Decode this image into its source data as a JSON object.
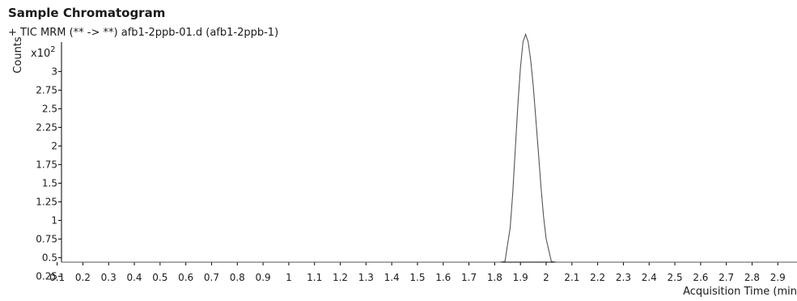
{
  "page": {
    "title": "Sample Chromatogram",
    "trace_label": "+ TIC MRM (** -> **) afb1-2ppb-01.d (afb1-2ppb-1)"
  },
  "chart_data": {
    "type": "line",
    "title": "Sample Chromatogram",
    "xlabel": "Acquisition Time (min",
    "ylabel": "Counts",
    "y_multiplier_label": "x10",
    "y_multiplier_exponent": "2",
    "xlim": [
      0,
      3.0
    ],
    "ylim": [
      0.125,
      3.5
    ],
    "x_ticks": [
      "0.1",
      "0.2",
      "0.3",
      "0.4",
      "0.5",
      "0.6",
      "0.7",
      "0.8",
      "0.9",
      "1",
      "1.1",
      "1.2",
      "1.3",
      "1.4",
      "1.5",
      "1.6",
      "1.7",
      "1.8",
      "1.9",
      "2",
      "2.1",
      "2.2",
      "2.3",
      "2.4",
      "2.5",
      "2.6",
      "2.7",
      "2.8",
      "2.9"
    ],
    "y_ticks": [
      "0.25",
      "0.5",
      "0.75",
      "1",
      "1.25",
      "1.5",
      "1.75",
      "2",
      "2.25",
      "2.5",
      "2.75",
      "3"
    ],
    "line_color": "#555555",
    "grid": false,
    "series": [
      {
        "x": [
          0.0,
          0.1,
          0.3,
          0.5,
          0.7,
          0.9,
          1.1,
          1.3,
          1.45,
          1.5,
          1.55,
          1.6,
          1.7,
          1.76,
          1.8,
          1.82,
          1.84,
          1.86,
          1.87,
          1.88,
          1.89,
          1.9,
          1.91,
          1.92,
          1.93,
          1.94,
          1.95,
          1.96,
          1.97,
          1.98,
          1.99,
          2.0,
          2.02,
          2.04,
          2.06,
          2.08,
          2.1,
          2.15,
          2.2,
          2.3,
          2.4,
          2.5,
          2.6,
          2.7,
          2.8,
          2.9,
          2.95,
          2.97,
          3.0
        ],
        "y": [
          0.13,
          0.135,
          0.135,
          0.14,
          0.135,
          0.14,
          0.14,
          0.14,
          0.14,
          0.16,
          0.15,
          0.145,
          0.15,
          0.17,
          0.19,
          0.25,
          0.45,
          0.9,
          1.35,
          1.95,
          2.55,
          3.05,
          3.4,
          3.5,
          3.4,
          3.15,
          2.8,
          2.35,
          1.9,
          1.45,
          1.05,
          0.75,
          0.45,
          0.3,
          0.22,
          0.19,
          0.17,
          0.16,
          0.15,
          0.15,
          0.145,
          0.15,
          0.15,
          0.16,
          0.16,
          0.17,
          0.18,
          0.16,
          0.18
        ]
      }
    ]
  }
}
